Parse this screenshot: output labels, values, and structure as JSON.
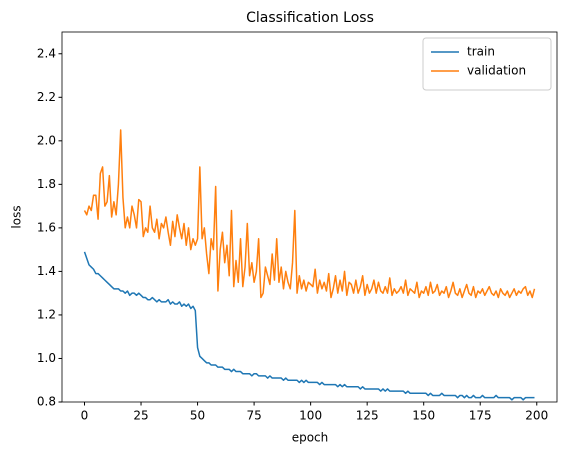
{
  "chart_data": {
    "type": "line",
    "title": "Classification Loss",
    "x_label": "epoch",
    "y_label": "loss",
    "x": [
      0,
      1,
      2,
      3,
      4,
      5,
      6,
      7,
      8,
      9,
      10,
      11,
      12,
      13,
      14,
      15,
      16,
      17,
      18,
      19,
      20,
      21,
      22,
      23,
      24,
      25,
      26,
      27,
      28,
      29,
      30,
      31,
      32,
      33,
      34,
      35,
      36,
      37,
      38,
      39,
      40,
      41,
      42,
      43,
      44,
      45,
      46,
      47,
      48,
      49,
      50,
      51,
      52,
      53,
      54,
      55,
      56,
      57,
      58,
      59,
      60,
      61,
      62,
      63,
      64,
      65,
      66,
      67,
      68,
      69,
      70,
      71,
      72,
      73,
      74,
      75,
      76,
      77,
      78,
      79,
      80,
      81,
      82,
      83,
      84,
      85,
      86,
      87,
      88,
      89,
      90,
      91,
      92,
      93,
      94,
      95,
      96,
      97,
      98,
      99,
      100,
      101,
      102,
      103,
      104,
      105,
      106,
      107,
      108,
      109,
      110,
      111,
      112,
      113,
      114,
      115,
      116,
      117,
      118,
      119,
      120,
      121,
      122,
      123,
      124,
      125,
      126,
      127,
      128,
      129,
      130,
      131,
      132,
      133,
      134,
      135,
      136,
      137,
      138,
      139,
      140,
      141,
      142,
      143,
      144,
      145,
      146,
      147,
      148,
      149,
      150,
      151,
      152,
      153,
      154,
      155,
      156,
      157,
      158,
      159,
      160,
      161,
      162,
      163,
      164,
      165,
      166,
      167,
      168,
      169,
      170,
      171,
      172,
      173,
      174,
      175,
      176,
      177,
      178,
      179,
      180,
      181,
      182,
      183,
      184,
      185,
      186,
      187,
      188,
      189,
      190,
      191,
      192,
      193,
      194,
      195,
      196,
      197,
      198,
      199
    ],
    "series": [
      {
        "name": "train",
        "color": "#1f77b4",
        "values": [
          1.49,
          1.46,
          1.43,
          1.42,
          1.41,
          1.39,
          1.39,
          1.38,
          1.37,
          1.36,
          1.35,
          1.34,
          1.33,
          1.32,
          1.32,
          1.32,
          1.31,
          1.31,
          1.3,
          1.31,
          1.29,
          1.3,
          1.3,
          1.29,
          1.3,
          1.29,
          1.28,
          1.28,
          1.27,
          1.27,
          1.28,
          1.27,
          1.26,
          1.27,
          1.26,
          1.26,
          1.26,
          1.27,
          1.25,
          1.26,
          1.25,
          1.25,
          1.26,
          1.24,
          1.25,
          1.24,
          1.25,
          1.23,
          1.24,
          1.22,
          1.05,
          1.01,
          1.0,
          0.99,
          0.98,
          0.98,
          0.97,
          0.97,
          0.97,
          0.96,
          0.96,
          0.96,
          0.95,
          0.95,
          0.95,
          0.94,
          0.95,
          0.94,
          0.94,
          0.94,
          0.93,
          0.93,
          0.93,
          0.93,
          0.92,
          0.93,
          0.93,
          0.92,
          0.92,
          0.92,
          0.92,
          0.91,
          0.92,
          0.91,
          0.91,
          0.91,
          0.91,
          0.91,
          0.9,
          0.91,
          0.9,
          0.9,
          0.9,
          0.9,
          0.9,
          0.89,
          0.9,
          0.89,
          0.9,
          0.89,
          0.89,
          0.89,
          0.89,
          0.89,
          0.88,
          0.89,
          0.88,
          0.88,
          0.88,
          0.88,
          0.88,
          0.88,
          0.87,
          0.88,
          0.87,
          0.88,
          0.87,
          0.87,
          0.87,
          0.87,
          0.87,
          0.87,
          0.86,
          0.87,
          0.86,
          0.86,
          0.86,
          0.86,
          0.86,
          0.86,
          0.86,
          0.85,
          0.86,
          0.85,
          0.86,
          0.85,
          0.85,
          0.85,
          0.85,
          0.85,
          0.85,
          0.85,
          0.84,
          0.85,
          0.84,
          0.84,
          0.84,
          0.84,
          0.84,
          0.84,
          0.84,
          0.84,
          0.83,
          0.84,
          0.83,
          0.83,
          0.83,
          0.83,
          0.84,
          0.83,
          0.83,
          0.83,
          0.83,
          0.83,
          0.83,
          0.82,
          0.83,
          0.83,
          0.82,
          0.83,
          0.82,
          0.82,
          0.83,
          0.82,
          0.82,
          0.82,
          0.83,
          0.82,
          0.82,
          0.82,
          0.82,
          0.82,
          0.83,
          0.82,
          0.82,
          0.82,
          0.82,
          0.82,
          0.82,
          0.81,
          0.82,
          0.82,
          0.82,
          0.82,
          0.81,
          0.82,
          0.82,
          0.82,
          0.82,
          0.82
        ]
      },
      {
        "name": "validation",
        "color": "#ff7f0e",
        "values": [
          1.68,
          1.66,
          1.7,
          1.68,
          1.75,
          1.75,
          1.64,
          1.85,
          1.88,
          1.7,
          1.72,
          1.84,
          1.65,
          1.72,
          1.66,
          1.8,
          2.05,
          1.74,
          1.6,
          1.65,
          1.6,
          1.7,
          1.66,
          1.6,
          1.73,
          1.72,
          1.56,
          1.6,
          1.58,
          1.7,
          1.6,
          1.58,
          1.64,
          1.55,
          1.62,
          1.6,
          1.65,
          1.58,
          1.52,
          1.63,
          1.56,
          1.66,
          1.6,
          1.55,
          1.62,
          1.52,
          1.6,
          1.5,
          1.55,
          1.52,
          1.55,
          1.88,
          1.55,
          1.6,
          1.48,
          1.39,
          1.55,
          1.5,
          1.79,
          1.31,
          1.5,
          1.58,
          1.44,
          1.52,
          1.38,
          1.68,
          1.33,
          1.45,
          1.35,
          1.55,
          1.33,
          1.42,
          1.62,
          1.38,
          1.44,
          1.35,
          1.4,
          1.55,
          1.28,
          1.3,
          1.42,
          1.38,
          1.34,
          1.48,
          1.36,
          1.55,
          1.35,
          1.42,
          1.32,
          1.4,
          1.35,
          1.32,
          1.44,
          1.68,
          1.3,
          1.38,
          1.32,
          1.36,
          1.31,
          1.35,
          1.34,
          1.33,
          1.41,
          1.3,
          1.36,
          1.32,
          1.35,
          1.31,
          1.39,
          1.28,
          1.32,
          1.38,
          1.3,
          1.36,
          1.31,
          1.4,
          1.29,
          1.35,
          1.34,
          1.3,
          1.36,
          1.3,
          1.33,
          1.38,
          1.29,
          1.34,
          1.3,
          1.32,
          1.36,
          1.3,
          1.35,
          1.31,
          1.3,
          1.33,
          1.3,
          1.37,
          1.29,
          1.32,
          1.3,
          1.31,
          1.33,
          1.3,
          1.36,
          1.29,
          1.32,
          1.31,
          1.3,
          1.35,
          1.28,
          1.31,
          1.3,
          1.33,
          1.29,
          1.35,
          1.3,
          1.31,
          1.34,
          1.29,
          1.31,
          1.3,
          1.33,
          1.28,
          1.31,
          1.35,
          1.3,
          1.29,
          1.32,
          1.28,
          1.31,
          1.34,
          1.3,
          1.29,
          1.33,
          1.28,
          1.31,
          1.3,
          1.32,
          1.29,
          1.31,
          1.33,
          1.3,
          1.29,
          1.31,
          1.28,
          1.32,
          1.3,
          1.29,
          1.31,
          1.28,
          1.3,
          1.32,
          1.29,
          1.31,
          1.3,
          1.32,
          1.33,
          1.29,
          1.31,
          1.28,
          1.32
        ]
      }
    ],
    "xlim": [
      -9.95,
      208.95
    ],
    "xticks": [
      0,
      25,
      50,
      75,
      100,
      125,
      150,
      175,
      200
    ],
    "ylim": [
      0.8,
      2.5
    ],
    "yticks": [
      0.8,
      {
        "value": 1,
        "label": "1.0"
      },
      1.2,
      1.4,
      1.6,
      1.8,
      {
        "value": 2,
        "label": "2.0"
      },
      2.2,
      2.4
    ],
    "grid": false,
    "legend": "upper right"
  }
}
